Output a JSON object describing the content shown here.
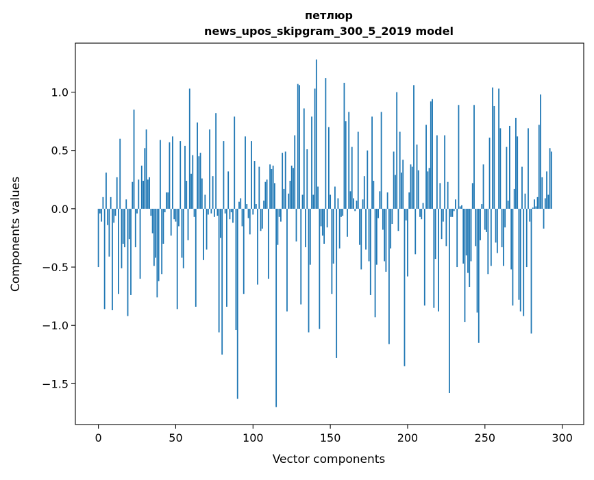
{
  "chart_data": {
    "type": "bar",
    "title": "петлюр",
    "subtitle": "news_upos_skipgram_300_5_2019 model",
    "xlabel": "Vector components",
    "ylabel": "Components values",
    "xlim": [
      -14.9,
      313.9
    ],
    "ylim": [
      -1.85,
      1.42
    ],
    "xticks": [
      0,
      50,
      100,
      150,
      200,
      250,
      300
    ],
    "xtick_labels": [
      "0",
      "50",
      "100",
      "150",
      "200",
      "250",
      "300"
    ],
    "yticks": [
      -1.5,
      -1.0,
      -0.5,
      0.0,
      0.5,
      1.0
    ],
    "ytick_labels": [
      "−1.5",
      "−1.0",
      "−0.5",
      "0.0",
      "0.5",
      "1.0"
    ],
    "grid": false,
    "bar_color": "#1f77b4",
    "values": [
      -0.5,
      -0.04,
      -0.11,
      0.1,
      -0.86,
      0.31,
      -0.14,
      -0.41,
      0.1,
      -0.87,
      -0.12,
      -0.06,
      0.27,
      -0.73,
      0.6,
      -0.51,
      -0.3,
      -0.33,
      0.08,
      -0.92,
      -0.26,
      -0.74,
      0.23,
      0.85,
      -0.33,
      -0.04,
      0.25,
      -0.6,
      0.37,
      0.24,
      0.52,
      0.68,
      0.25,
      0.27,
      -0.06,
      -0.21,
      -0.49,
      -0.42,
      -0.76,
      -0.62,
      0.59,
      -0.56,
      -0.3,
      -0.03,
      0.14,
      0.14,
      0.57,
      -0.23,
      0.62,
      -0.09,
      -0.11,
      -0.86,
      -0.15,
      0.58,
      -0.42,
      -0.51,
      0.54,
      0.24,
      -0.27,
      1.03,
      0.3,
      0.46,
      -0.07,
      -0.84,
      0.74,
      0.45,
      0.48,
      0.26,
      -0.44,
      0.12,
      -0.35,
      -0.05,
      0.68,
      -0.04,
      0.28,
      -0.07,
      0.82,
      -0.06,
      -1.06,
      -0.25,
      -1.25,
      0.58,
      -0.04,
      -0.84,
      0.32,
      -0.09,
      -0.03,
      -0.12,
      0.79,
      -1.04,
      -1.63,
      0.06,
      0.09,
      -0.15,
      -0.73,
      0.62,
      0.04,
      -0.08,
      -0.22,
      0.58,
      -0.05,
      0.41,
      0.04,
      -0.65,
      0.36,
      -0.19,
      -0.17,
      0.07,
      0.23,
      0.25,
      -0.6,
      0.38,
      0.34,
      0.37,
      0.22,
      -1.7,
      -0.31,
      -0.07,
      -0.11,
      0.48,
      0.17,
      0.49,
      -0.88,
      0.13,
      0.24,
      0.37,
      0.35,
      0.63,
      -0.28,
      1.07,
      1.06,
      -0.82,
      0.12,
      0.86,
      -0.33,
      0.51,
      -1.06,
      -0.48,
      0.79,
      0.12,
      1.03,
      1.28,
      0.19,
      -1.03,
      -0.15,
      -0.23,
      -0.3,
      1.12,
      -0.16,
      0.7,
      0.12,
      -0.73,
      -0.47,
      0.19,
      -1.28,
      0.09,
      -0.34,
      -0.07,
      -0.06,
      1.08,
      0.75,
      -0.24,
      0.83,
      0.15,
      0.53,
      0.09,
      -0.02,
      0.07,
      0.66,
      -0.31,
      -0.52,
      0.08,
      0.28,
      -0.35,
      0.5,
      -0.45,
      -0.74,
      0.79,
      0.24,
      -0.93,
      -0.48,
      -0.08,
      0.15,
      0.83,
      -0.18,
      -0.45,
      -0.54,
      0.14,
      -1.16,
      -0.34,
      -0.13,
      0.49,
      0.29,
      1.0,
      -0.19,
      0.66,
      0.31,
      0.42,
      -1.35,
      -0.1,
      -0.58,
      0.14,
      0.38,
      0.36,
      1.06,
      -0.39,
      0.55,
      0.33,
      -0.07,
      -0.09,
      0.05,
      -0.83,
      0.72,
      0.32,
      0.35,
      0.92,
      0.94,
      -0.85,
      -0.43,
      0.63,
      -0.88,
      0.22,
      -0.26,
      -0.11,
      0.63,
      -0.32,
      0.23,
      -1.58,
      -0.07,
      -0.07,
      -0.02,
      0.08,
      -0.5,
      0.89,
      0.02,
      0.03,
      -0.47,
      -0.97,
      -0.4,
      -0.55,
      -0.67,
      -0.45,
      0.22,
      0.89,
      -0.32,
      -0.89,
      -1.15,
      -0.27,
      0.04,
      0.38,
      -0.18,
      -0.2,
      -0.56,
      0.61,
      -0.49,
      1.04,
      0.88,
      -0.29,
      -0.38,
      1.03,
      0.69,
      -0.33,
      -0.49,
      -0.16,
      0.53,
      0.07,
      0.71,
      -0.52,
      -0.83,
      0.17,
      0.78,
      0.62,
      -0.78,
      -0.88,
      0.36,
      -0.92,
      0.13,
      -0.5,
      0.69,
      -0.11,
      -1.07,
      0.01,
      0.08,
      0.02,
      0.1,
      0.72,
      0.98,
      0.27,
      -0.17,
      0.09,
      0.32,
      0.12,
      0.52,
      0.49
    ]
  }
}
